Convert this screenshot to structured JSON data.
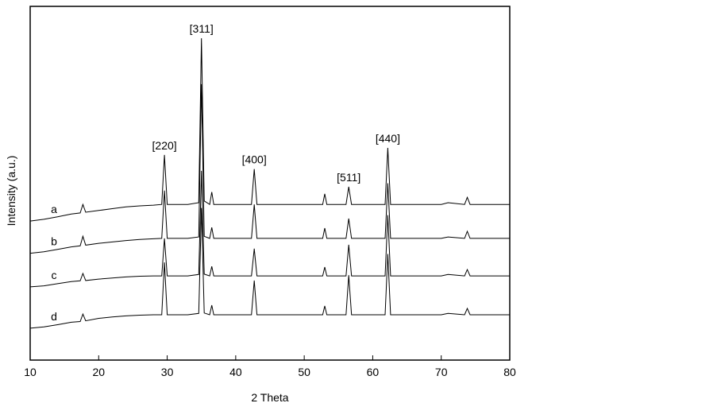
{
  "chart_data": {
    "type": "line",
    "xlabel": "2 Theta",
    "ylabel": "Intensity (a.u.)",
    "x": [
      10,
      12,
      14,
      16,
      17.3,
      17.7,
      18.1,
      20,
      22,
      24,
      26,
      28,
      29.2,
      29.6,
      30.0,
      31,
      33,
      34.6,
      35.0,
      35.4,
      36.2,
      36.5,
      36.8,
      38,
      40,
      42.3,
      42.7,
      43.1,
      45,
      48,
      50,
      52.7,
      53.0,
      53.3,
      55,
      56.1,
      56.5,
      56.9,
      58,
      60,
      61.8,
      62.2,
      62.6,
      64,
      66,
      68,
      70,
      71,
      73.4,
      73.8,
      74.2,
      76,
      78,
      80
    ],
    "series": [
      {
        "name": "a",
        "color": "#000000",
        "values": [
          39.3,
          39.8,
          40.5,
          41.3,
          41.6,
          44,
          41.8,
          42.3,
          42.8,
          43.3,
          43.6,
          43.8,
          44,
          58,
          44,
          44,
          44,
          44.5,
          91,
          45,
          44,
          47.5,
          44,
          44,
          44,
          44,
          54,
          44,
          44,
          44,
          44,
          44,
          47,
          44,
          44,
          44,
          49,
          44,
          44,
          44,
          44,
          60,
          44,
          44,
          44,
          44,
          44,
          44.5,
          44,
          46,
          44,
          44,
          44,
          44
        ]
      },
      {
        "name": "b",
        "color": "#000000",
        "values": [
          30.2,
          30.6,
          31.3,
          32,
          32.3,
          35,
          32.5,
          33,
          33.4,
          33.8,
          34.1,
          34.3,
          34.4,
          47.9,
          34.4,
          34.4,
          34.4,
          34.8,
          78,
          35,
          34.4,
          37.5,
          34.4,
          34.4,
          34.4,
          34.4,
          44,
          34.4,
          34.4,
          34.4,
          34.4,
          34.4,
          37.3,
          34.4,
          34.4,
          34.4,
          40,
          34.4,
          34.4,
          34.4,
          34.4,
          50,
          34.4,
          34.4,
          34.4,
          34.4,
          34.4,
          34.8,
          34.4,
          36.4,
          34.4,
          34.4,
          34.4,
          34.4
        ]
      },
      {
        "name": "c",
        "color": "#000000",
        "values": [
          20.7,
          21,
          21.6,
          22.2,
          22.4,
          24.5,
          22.5,
          22.9,
          23.2,
          23.5,
          23.7,
          23.8,
          23.8,
          34.4,
          23.8,
          23.8,
          23.8,
          24.2,
          53.5,
          24.3,
          23.8,
          26.5,
          23.8,
          23.8,
          23.8,
          23.8,
          31.5,
          23.8,
          23.8,
          23.8,
          23.8,
          23.8,
          26.3,
          23.8,
          23.8,
          23.8,
          32.6,
          23.8,
          23.8,
          23.8,
          23.8,
          41,
          23.8,
          23.8,
          23.8,
          23.8,
          23.8,
          24.2,
          23.8,
          25.6,
          23.8,
          23.8,
          23.8,
          23.8
        ]
      },
      {
        "name": "d",
        "color": "#000000",
        "values": [
          9,
          9.4,
          10,
          10.7,
          10.9,
          13,
          11.1,
          11.8,
          12.2,
          12.5,
          12.7,
          12.8,
          12.8,
          27.6,
          12.8,
          12.8,
          12.8,
          13.2,
          43,
          13.3,
          12.8,
          15.5,
          12.8,
          12.8,
          12.8,
          12.8,
          22.5,
          12.8,
          12.8,
          12.8,
          12.8,
          12.8,
          15.3,
          12.8,
          12.8,
          12.8,
          24,
          12.8,
          12.8,
          12.8,
          12.8,
          30,
          12.8,
          12.8,
          12.8,
          12.8,
          12.8,
          13.2,
          12.8,
          14.6,
          12.8,
          12.8,
          12.8,
          12.8
        ]
      }
    ],
    "annotations": [
      {
        "text": "[220]",
        "x": 29.6
      },
      {
        "text": "[311]",
        "x": 35.0
      },
      {
        "text": "[400]",
        "x": 42.7
      },
      {
        "text": "[511]",
        "x": 56.5
      },
      {
        "text": "[440]",
        "x": 62.2
      }
    ],
    "xlim": [
      10,
      80
    ],
    "xticks": [
      10,
      20,
      30,
      40,
      50,
      60,
      70,
      80
    ],
    "ylim": [
      0,
      100
    ]
  }
}
